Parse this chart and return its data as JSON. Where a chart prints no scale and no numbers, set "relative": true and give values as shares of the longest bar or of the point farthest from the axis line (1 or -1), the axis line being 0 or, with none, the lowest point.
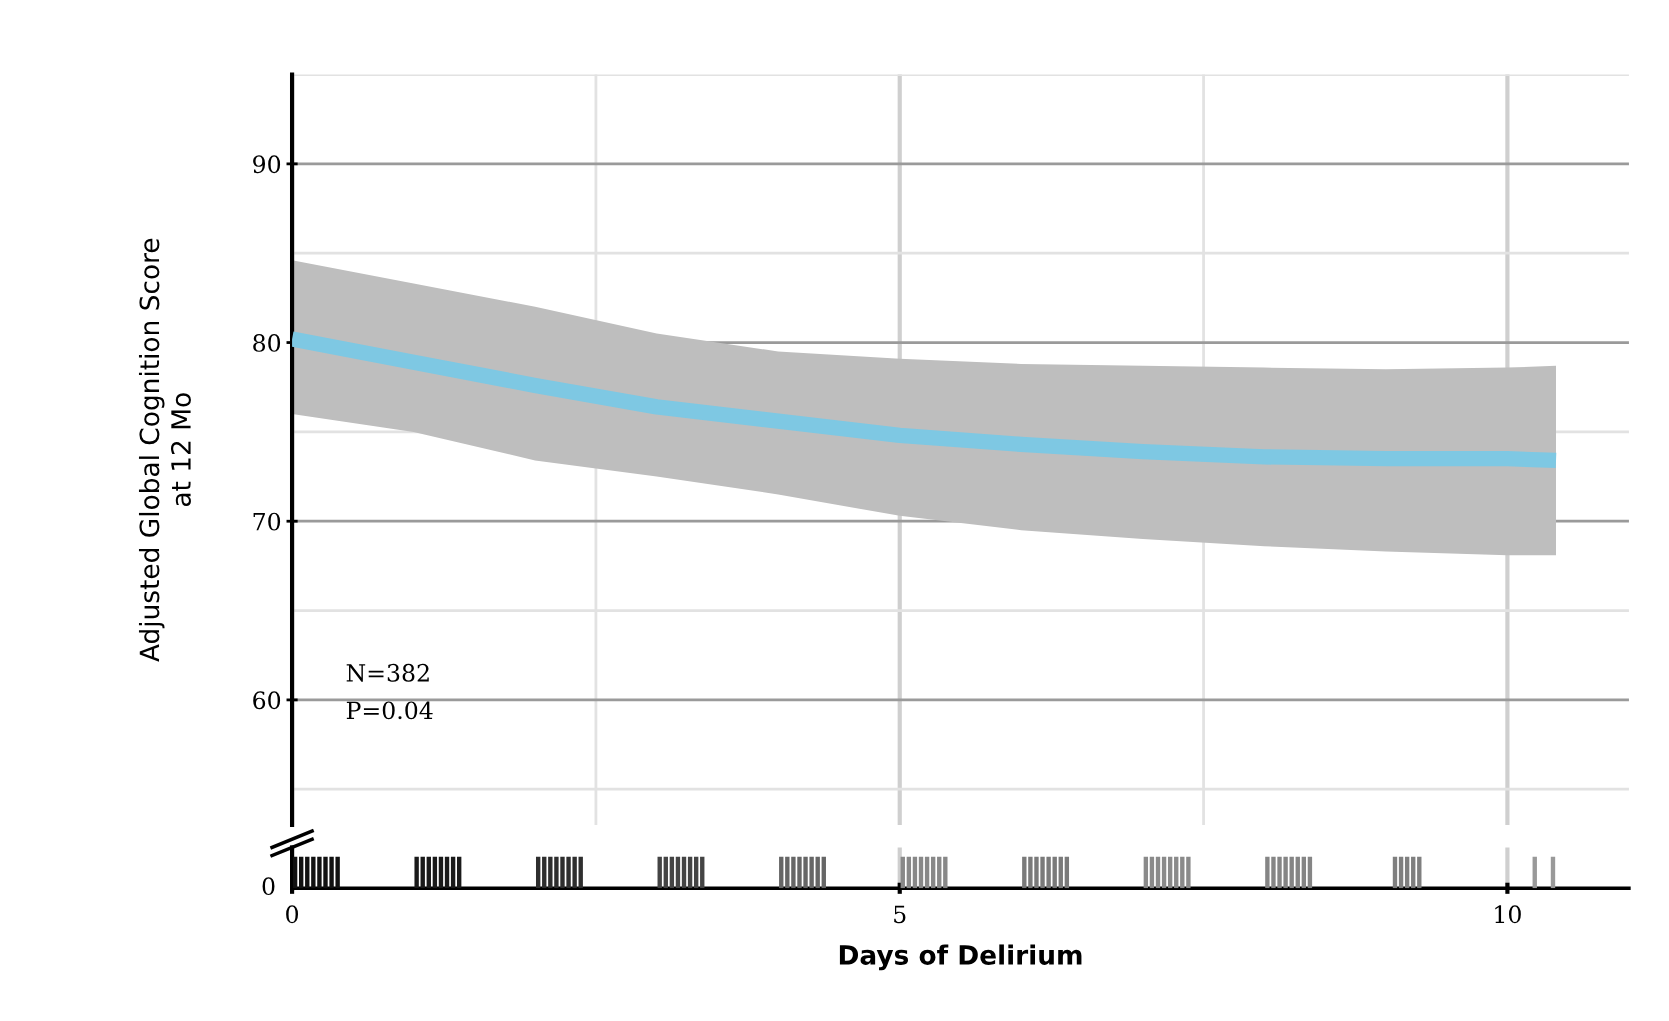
{
  "chart_data": [
    {
      "type": "line",
      "xlabel": null,
      "ylabel": "Adjusted Global Cognition Score\nat 12 Mo",
      "xlim": [
        0,
        11
      ],
      "xticks": [
        0,
        5,
        10
      ],
      "ylim": [
        53,
        95
      ],
      "yticks": [
        60,
        70,
        80,
        90
      ],
      "tick_labels": "y",
      "grid": true,
      "annotations": [
        "N=382",
        "P=0.04"
      ],
      "series": [
        {
          "color": "#7ec8e3",
          "x": [
            0,
            1,
            2,
            3,
            4,
            5,
            6,
            7,
            8,
            9,
            10,
            10.4
          ],
          "values": [
            80.2,
            78.9,
            77.6,
            76.4,
            75.6,
            74.8,
            74.3,
            73.9,
            73.6,
            73.5,
            73.5,
            73.4
          ],
          "lower": [
            76.0,
            75.0,
            73.4,
            72.5,
            71.5,
            70.3,
            69.5,
            69.0,
            68.6,
            68.3,
            68.1,
            68.1
          ],
          "upper": [
            84.6,
            83.3,
            82.0,
            80.5,
            79.5,
            79.1,
            78.8,
            78.7,
            78.6,
            78.5,
            78.6,
            78.7
          ]
        }
      ]
    },
    {
      "type": "bar",
      "relative": true,
      "tick_labels": "x",
      "xlabel": "Days of Delirium",
      "xlim": [
        0,
        11
      ],
      "xticks": [
        0,
        5,
        10
      ],
      "grid": "x",
      "annotations": [
        "0"
      ],
      "series": [
        {
          "color": "#111111",
          "x": [
            0.025,
            0.075,
            0.125,
            0.175,
            0.225,
            0.275,
            0.325,
            0.375
          ],
          "values": [
            1,
            1,
            1,
            1,
            1,
            1,
            1,
            1
          ]
        },
        {
          "color": "#1a1a1a",
          "x": [
            1.025,
            1.075,
            1.125,
            1.175,
            1.225,
            1.275,
            1.325,
            1.375
          ],
          "values": [
            1,
            1,
            1,
            1,
            1,
            1,
            1,
            1
          ]
        },
        {
          "color": "#2e2e2e",
          "x": [
            2.025,
            2.075,
            2.125,
            2.175,
            2.225,
            2.275,
            2.325,
            2.375
          ],
          "values": [
            1,
            1,
            1,
            1,
            1,
            1,
            1,
            1
          ]
        },
        {
          "color": "#444444",
          "x": [
            3.025,
            3.075,
            3.125,
            3.175,
            3.225,
            3.275,
            3.325,
            3.375
          ],
          "values": [
            1,
            1,
            1,
            1,
            1,
            1,
            1,
            1
          ]
        },
        {
          "color": "#666666",
          "x": [
            4.025,
            4.075,
            4.125,
            4.175,
            4.225,
            4.275,
            4.325,
            4.375
          ],
          "values": [
            1,
            1,
            1,
            1,
            1,
            1,
            1,
            1
          ]
        },
        {
          "color": "#888888",
          "x": [
            5.025,
            5.075,
            5.125,
            5.175,
            5.225,
            5.275,
            5.325,
            5.375
          ],
          "values": [
            1,
            1,
            1,
            1,
            1,
            1,
            1,
            1
          ]
        },
        {
          "color": "#7a7a7a",
          "x": [
            6.025,
            6.075,
            6.125,
            6.175,
            6.225,
            6.275,
            6.325,
            6.375
          ],
          "values": [
            1,
            1,
            1,
            1,
            1,
            1,
            1,
            1
          ]
        },
        {
          "color": "#8a8a8a",
          "x": [
            7.025,
            7.075,
            7.125,
            7.175,
            7.225,
            7.275,
            7.325,
            7.375
          ],
          "values": [
            1,
            1,
            1,
            1,
            1,
            1,
            1,
            1
          ]
        },
        {
          "color": "#858585",
          "x": [
            8.025,
            8.075,
            8.125,
            8.175,
            8.225,
            8.275,
            8.325,
            8.375
          ],
          "values": [
            1,
            1,
            1,
            1,
            1,
            1,
            1,
            1
          ]
        },
        {
          "color": "#7f7f7f",
          "x": [
            9.075,
            9.125,
            9.175,
            9.225,
            9.275
          ],
          "values": [
            1,
            1,
            1,
            1,
            1
          ]
        },
        {
          "color": "#999999",
          "x": [
            10.225,
            10.375
          ],
          "values": [
            1,
            1
          ]
        }
      ]
    }
  ]
}
